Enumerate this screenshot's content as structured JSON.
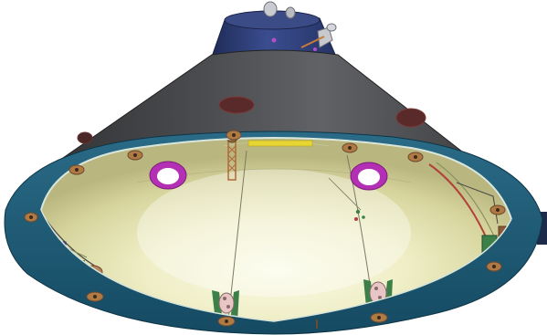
{
  "scene": {
    "subject": "capsule-backshell-cutaway",
    "colors": {
      "background": "#ffffff",
      "shell_dark": "#3c3c3e",
      "shell_light": "#6e6f72",
      "nose_blue": "#2f3f78",
      "ring_blue": "#1f5f7a",
      "ring_rim": "#d9e6dc",
      "interior_light": "#f7f6d8",
      "interior_mid": "#e6e4b4",
      "interior_dark": "#bfbd86",
      "port_purple": "#b32fb3",
      "bolt_orange": "#b07a45",
      "bracket_green": "#3d7f48",
      "cable_red": "#b0413a",
      "pad_yellow": "#e7d533"
    }
  }
}
